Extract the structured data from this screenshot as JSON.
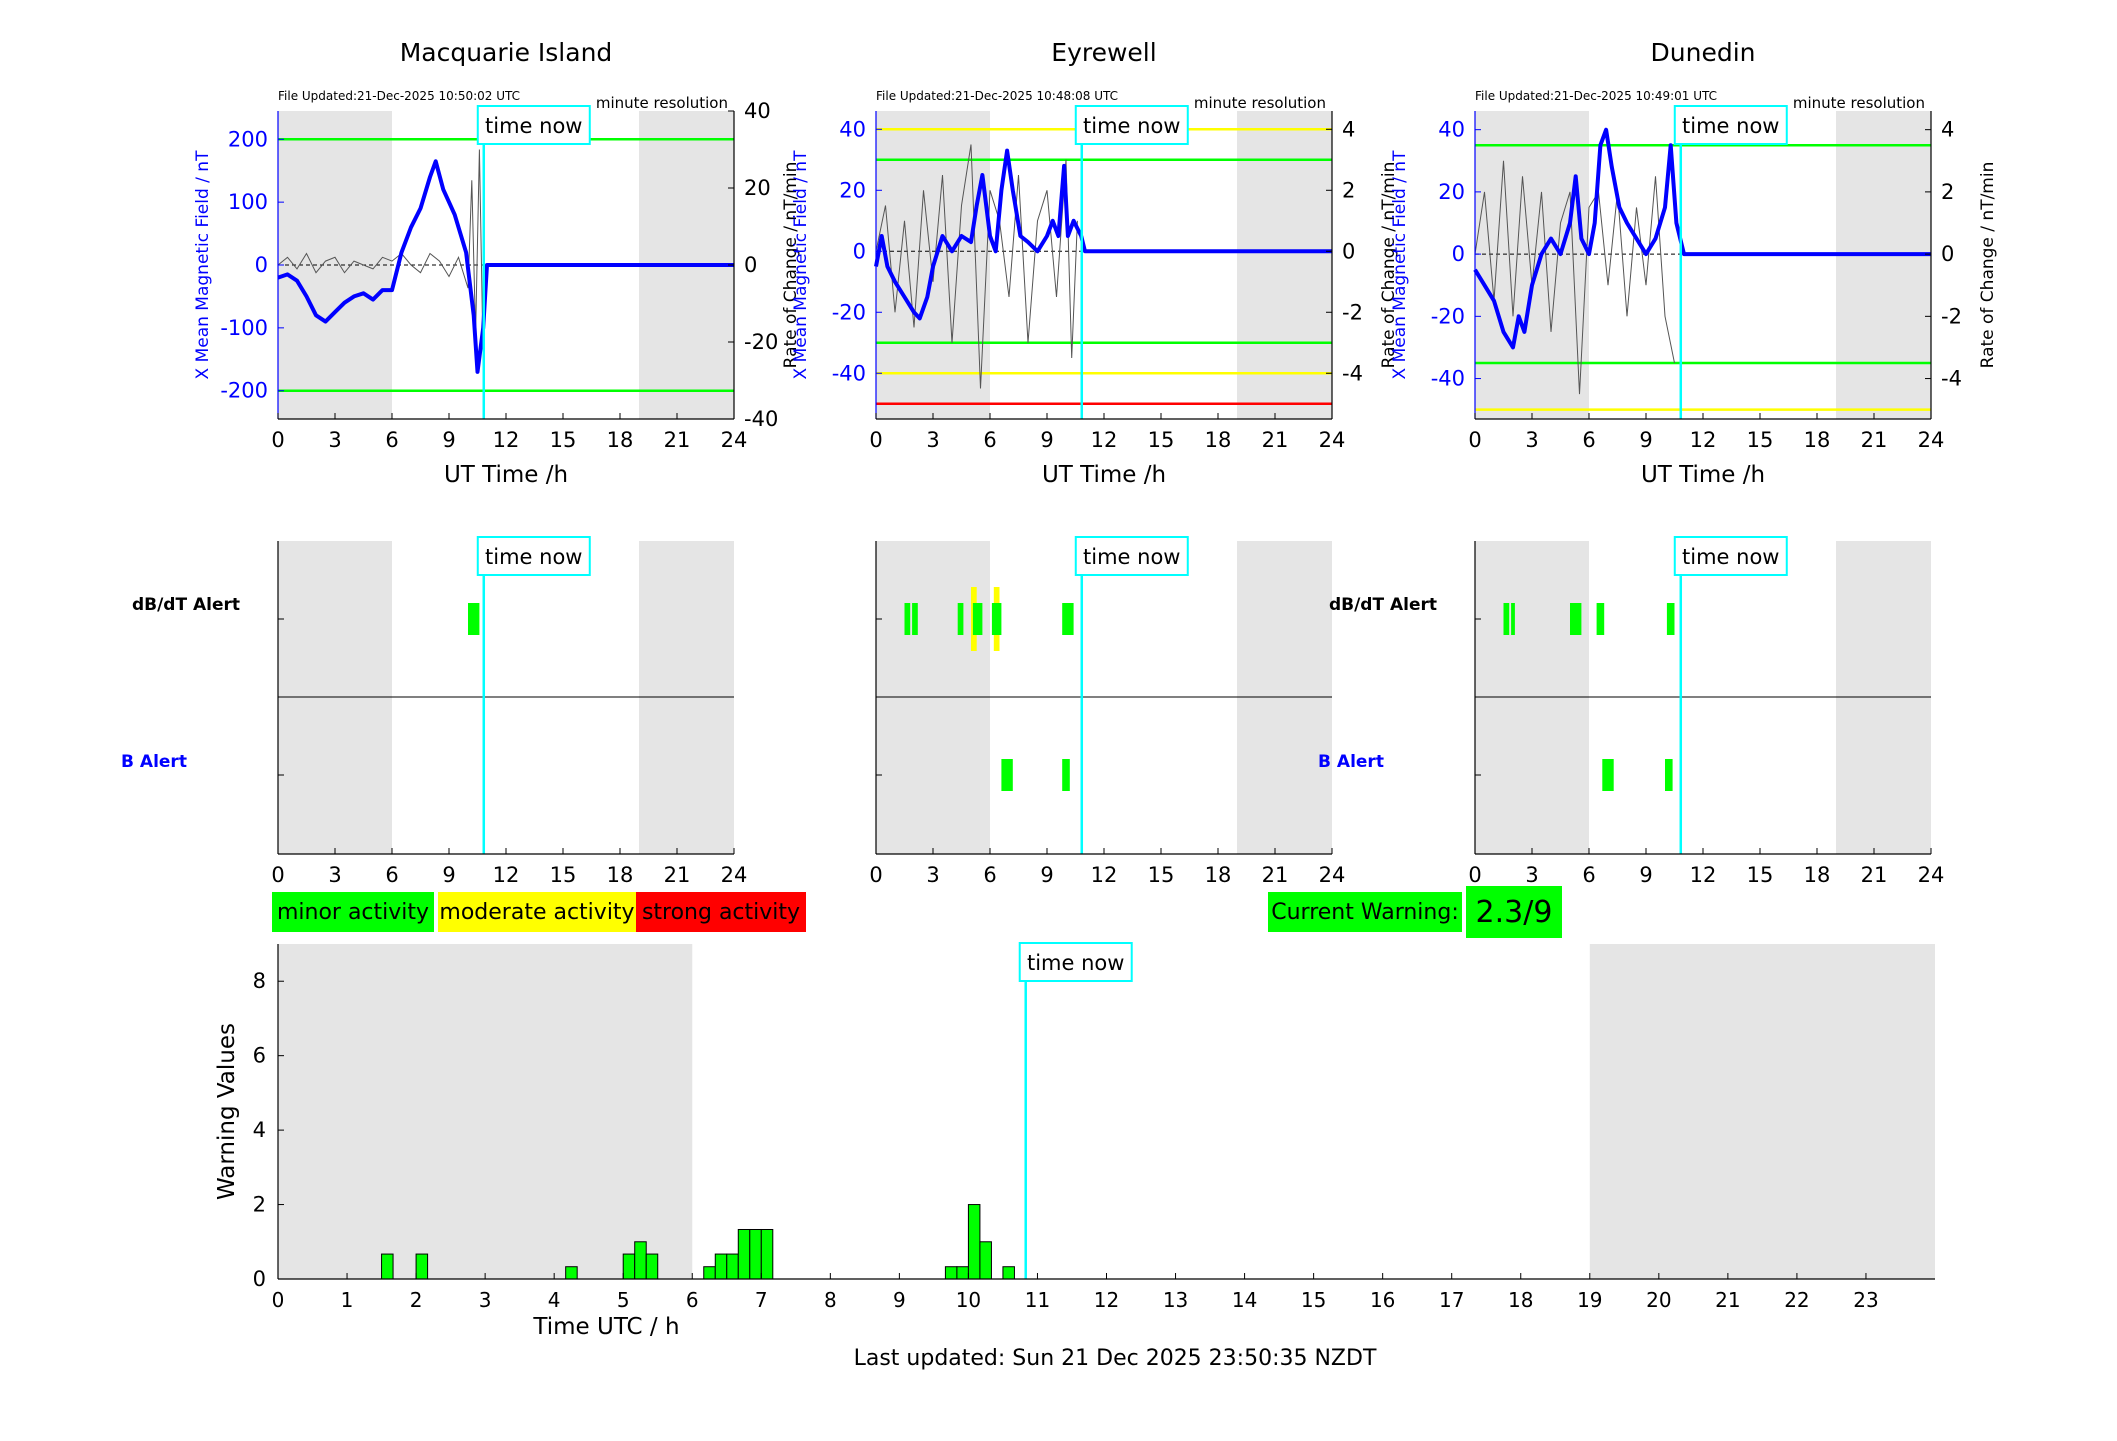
{
  "time_now_label": "time now",
  "time_now_hour": 10.83,
  "legend": [
    {
      "label": "minor activity",
      "color": "#00ff00"
    },
    {
      "label": "moderate activity",
      "color": "#ffff00"
    },
    {
      "label": "strong activity",
      "color": "#ff0000"
    }
  ],
  "current_warning": {
    "label": "Current Warning:",
    "value": "2.3/9",
    "color": "#00ff00"
  },
  "last_updated": "Last updated: Sun 21 Dec 2025 23:50:35 NZDT",
  "chart_data": [
    {
      "type": "line",
      "title": "Macquarie Island",
      "file_updated": "File Updated:21-Dec-2025 10:50:02 UTC",
      "resolution": "minute resolution",
      "xlabel": "UT Time /h",
      "ylabel_left": "X Mean Magnetic Field / nT",
      "ylabel_right": "Rate of Change / nT/min",
      "xlim": [
        0,
        24
      ],
      "xticks": [
        0,
        3,
        6,
        9,
        12,
        15,
        18,
        21,
        24
      ],
      "ylim_left": [
        -245,
        245
      ],
      "yticks_left": [
        -200,
        -100,
        0,
        100,
        200
      ],
      "ylim_right": [
        -40,
        40
      ],
      "yticks_right": [
        -40,
        -20,
        0,
        20,
        40
      ],
      "night_shading_hours": [
        [
          0,
          6
        ],
        [
          19,
          24
        ]
      ],
      "threshold_lines": [
        {
          "value": 200,
          "color": "#00ff00"
        },
        {
          "value": -200,
          "color": "#00ff00"
        }
      ],
      "field_series": {
        "color": "#0000ff",
        "x": [
          0,
          0.5,
          1,
          1.5,
          2,
          2.5,
          3,
          3.5,
          4,
          4.5,
          5,
          5.5,
          6,
          6.5,
          7,
          7.5,
          8,
          8.3,
          8.7,
          9,
          9.3,
          9.6,
          9.9,
          10.1,
          10.3,
          10.5,
          10.8,
          11,
          24
        ],
        "y": [
          -20,
          -15,
          -25,
          -50,
          -80,
          -90,
          -75,
          -60,
          -50,
          -45,
          -55,
          -40,
          -40,
          20,
          60,
          90,
          140,
          165,
          120,
          100,
          80,
          50,
          20,
          -30,
          -80,
          -170,
          -100,
          0,
          0
        ]
      },
      "rate_series": {
        "color": "#555555",
        "x": [
          0,
          0.5,
          1,
          1.5,
          2,
          2.5,
          3,
          3.5,
          4,
          4.5,
          5,
          5.5,
          6,
          6.5,
          7,
          7.5,
          8,
          8.5,
          9,
          9.5,
          10,
          10.2,
          10.4,
          10.6,
          10.8
        ],
        "y": [
          0,
          2,
          -1,
          3,
          -2,
          1,
          2,
          -2,
          1,
          0,
          -1,
          2,
          1,
          3,
          0,
          -2,
          3,
          1,
          -3,
          2,
          -6,
          22,
          -18,
          30,
          -25
        ]
      }
    },
    {
      "type": "line",
      "title": "Eyrewell",
      "file_updated": "File Updated:21-Dec-2025 10:48:08 UTC",
      "resolution": "minute resolution",
      "xlabel": "UT Time /h",
      "ylabel_left": "X Mean Magnetic Field / nT",
      "ylabel_right": "Rate of Change / nT/min",
      "xlim": [
        0,
        24
      ],
      "xticks": [
        0,
        3,
        6,
        9,
        12,
        15,
        18,
        21,
        24
      ],
      "ylim_left": [
        -55,
        46
      ],
      "yticks_left": [
        -40,
        -20,
        0,
        20,
        40
      ],
      "ylim_right": [
        -5.5,
        4.6
      ],
      "yticks_right": [
        -4,
        -2,
        0,
        2,
        4
      ],
      "night_shading_hours": [
        [
          0,
          6
        ],
        [
          19,
          24
        ]
      ],
      "threshold_lines": [
        {
          "value": 40,
          "color": "#ffff00"
        },
        {
          "value": 30,
          "color": "#00ff00"
        },
        {
          "value": -30,
          "color": "#00ff00"
        },
        {
          "value": -40,
          "color": "#ffff00"
        },
        {
          "value": -50,
          "color": "#ff0000"
        }
      ],
      "field_series": {
        "color": "#0000ff",
        "x": [
          0,
          0.3,
          0.6,
          1,
          1.5,
          2,
          2.3,
          2.7,
          3,
          3.5,
          4,
          4.5,
          5,
          5.3,
          5.6,
          6,
          6.3,
          6.6,
          6.9,
          7.2,
          7.6,
          8,
          8.5,
          9,
          9.3,
          9.6,
          9.9,
          10.1,
          10.4,
          10.8,
          11,
          24
        ],
        "y": [
          -5,
          5,
          -5,
          -10,
          -15,
          -20,
          -22,
          -15,
          -5,
          5,
          0,
          5,
          3,
          15,
          25,
          5,
          0,
          20,
          33,
          20,
          5,
          3,
          0,
          5,
          10,
          5,
          28,
          5,
          10,
          5,
          0,
          0
        ]
      },
      "rate_series": {
        "color": "#555555",
        "x": [
          0,
          0.5,
          1,
          1.5,
          2,
          2.5,
          3,
          3.5,
          4,
          4.5,
          5,
          5.5,
          6,
          6.5,
          7,
          7.5,
          8,
          8.5,
          9,
          9.5,
          10,
          10.3,
          10.6
        ],
        "y": [
          0,
          1.5,
          -2,
          1,
          -2.5,
          2,
          -1,
          2.5,
          -3,
          1.5,
          3.5,
          -4.5,
          2,
          1,
          -1.5,
          2.5,
          -3,
          1,
          2,
          -1.5,
          3,
          -3.5,
          1
        ]
      }
    },
    {
      "type": "line",
      "title": "Dunedin",
      "file_updated": "File Updated:21-Dec-2025 10:49:01 UTC",
      "resolution": "minute resolution",
      "xlabel": "UT Time /h",
      "ylabel_left": "X Mean Magnetic Field / nT",
      "ylabel_right": "Rate of Change / nT/min",
      "xlim": [
        0,
        24
      ],
      "xticks": [
        0,
        3,
        6,
        9,
        12,
        15,
        18,
        21,
        24
      ],
      "ylim_left": [
        -53,
        46
      ],
      "yticks_left": [
        -40,
        -20,
        0,
        20,
        40
      ],
      "ylim_right": [
        -5.3,
        4.6
      ],
      "yticks_right": [
        -4,
        -2,
        0,
        2,
        4
      ],
      "night_shading_hours": [
        [
          0,
          6
        ],
        [
          19,
          24
        ]
      ],
      "threshold_lines": [
        {
          "value": 35,
          "color": "#00ff00"
        },
        {
          "value": -35,
          "color": "#00ff00"
        },
        {
          "value": -50,
          "color": "#ffff00"
        }
      ],
      "field_series": {
        "color": "#0000ff",
        "x": [
          0,
          0.5,
          1,
          1.5,
          2,
          2.3,
          2.6,
          3,
          3.5,
          4,
          4.5,
          5,
          5.3,
          5.6,
          6,
          6.3,
          6.6,
          6.9,
          7.2,
          7.6,
          8,
          8.5,
          9,
          9.5,
          10,
          10.3,
          10.6,
          11,
          24
        ],
        "y": [
          -5,
          -10,
          -15,
          -25,
          -30,
          -20,
          -25,
          -10,
          0,
          5,
          0,
          10,
          25,
          5,
          0,
          10,
          35,
          40,
          28,
          15,
          10,
          5,
          0,
          5,
          15,
          35,
          10,
          0,
          0
        ]
      },
      "rate_series": {
        "color": "#555555",
        "x": [
          0,
          0.5,
          1,
          1.5,
          2,
          2.5,
          3,
          3.5,
          4,
          4.5,
          5,
          5.5,
          6,
          6.5,
          7,
          7.5,
          8,
          8.5,
          9,
          9.5,
          10,
          10.5
        ],
        "y": [
          0,
          2,
          -1.5,
          3,
          -2,
          2.5,
          -1,
          2,
          -2.5,
          1,
          2,
          -4.5,
          1.5,
          2,
          -1,
          2,
          -2,
          1.5,
          -1,
          2.5,
          -2,
          -3.5
        ]
      }
    },
    {
      "type": "bar",
      "title": "",
      "xlabel": "",
      "label_dbdt": "dB/dT Alert",
      "label_b": "B Alert",
      "xlim": [
        0,
        24
      ],
      "xticks": [
        0,
        3,
        6,
        9,
        12,
        15,
        18,
        21,
        24
      ],
      "night_shading_hours": [
        [
          0,
          6
        ],
        [
          19,
          24
        ]
      ],
      "dbdt_alerts": [
        {
          "start": 10.0,
          "end": 10.6,
          "level": "minor"
        }
      ],
      "b_alerts": []
    },
    {
      "type": "bar",
      "title": "",
      "xlabel": "",
      "label_dbdt": "",
      "label_b": "",
      "xlim": [
        0,
        24
      ],
      "xticks": [
        0,
        3,
        6,
        9,
        12,
        15,
        18,
        21,
        24
      ],
      "night_shading_hours": [
        [
          0,
          6
        ],
        [
          19,
          24
        ]
      ],
      "dbdt_alerts": [
        {
          "start": 1.5,
          "end": 1.8,
          "level": "minor"
        },
        {
          "start": 1.9,
          "end": 2.2,
          "level": "minor"
        },
        {
          "start": 4.3,
          "end": 4.6,
          "level": "minor"
        },
        {
          "start": 5.0,
          "end": 5.3,
          "level": "moderate"
        },
        {
          "start": 5.1,
          "end": 5.6,
          "level": "minor"
        },
        {
          "start": 6.2,
          "end": 6.5,
          "level": "moderate"
        },
        {
          "start": 6.1,
          "end": 6.6,
          "level": "minor"
        },
        {
          "start": 9.8,
          "end": 10.4,
          "level": "minor"
        }
      ],
      "b_alerts": [
        {
          "start": 6.6,
          "end": 7.2,
          "level": "minor"
        },
        {
          "start": 9.8,
          "end": 10.2,
          "level": "minor"
        }
      ]
    },
    {
      "type": "bar",
      "title": "",
      "xlabel": "",
      "label_dbdt": "dB/dT Alert",
      "label_b": "B Alert",
      "xlim": [
        0,
        24
      ],
      "xticks": [
        0,
        3,
        6,
        9,
        12,
        15,
        18,
        21,
        24
      ],
      "night_shading_hours": [
        [
          0,
          6
        ],
        [
          19,
          24
        ]
      ],
      "dbdt_alerts": [
        {
          "start": 1.5,
          "end": 1.8,
          "level": "minor"
        },
        {
          "start": 1.9,
          "end": 2.1,
          "level": "minor"
        },
        {
          "start": 5.0,
          "end": 5.6,
          "level": "minor"
        },
        {
          "start": 6.4,
          "end": 6.8,
          "level": "minor"
        },
        {
          "start": 10.1,
          "end": 10.5,
          "level": "minor"
        }
      ],
      "b_alerts": [
        {
          "start": 6.7,
          "end": 7.3,
          "level": "minor"
        },
        {
          "start": 10.0,
          "end": 10.4,
          "level": "minor"
        }
      ]
    },
    {
      "type": "bar",
      "title": "",
      "xlabel": "Time UTC / h",
      "ylabel": "Warning Values",
      "xlim": [
        0,
        24
      ],
      "xticks": [
        0,
        1,
        2,
        3,
        4,
        5,
        6,
        7,
        8,
        9,
        10,
        11,
        12,
        13,
        14,
        15,
        16,
        17,
        18,
        19,
        20,
        21,
        22,
        23
      ],
      "ylim": [
        0,
        9
      ],
      "yticks": [
        0,
        2,
        4,
        6,
        8
      ],
      "night_shading_hours": [
        [
          0,
          6
        ],
        [
          19,
          24
        ]
      ],
      "bar_width_hours": 0.1667,
      "bar_color": "#00ff00",
      "bars_x": [
        1.5833,
        2.0833,
        4.25,
        5.0833,
        5.25,
        5.4167,
        6.25,
        6.4167,
        6.5833,
        6.75,
        6.9167,
        7.0833,
        9.75,
        9.9167,
        10.0833,
        10.25,
        10.5833
      ],
      "bars_y": [
        0.67,
        0.67,
        0.33,
        0.67,
        1.0,
        0.67,
        0.33,
        0.67,
        0.67,
        1.33,
        1.33,
        1.33,
        0.33,
        0.33,
        2.0,
        1.0,
        0.33
      ]
    }
  ]
}
